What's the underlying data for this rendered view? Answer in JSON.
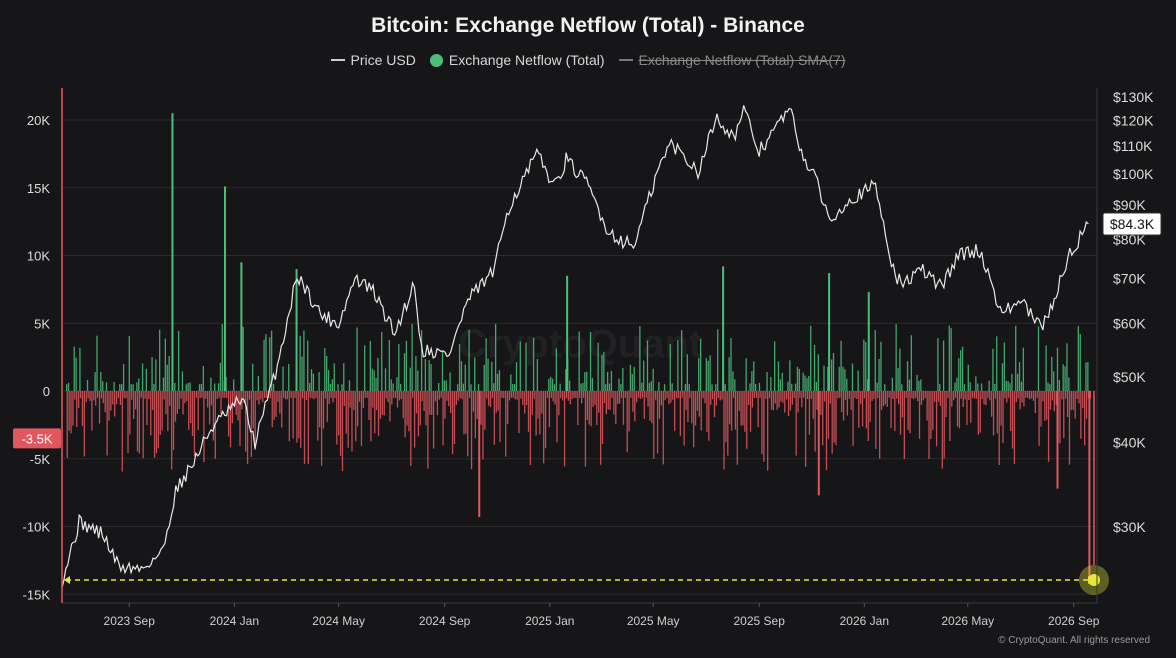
{
  "chart_data": {
    "type": "bar",
    "title": "Bitcoin: Exchange Netflow (Total) - Binance",
    "legend": [
      {
        "name": "Price USD",
        "kind": "line",
        "active": true
      },
      {
        "name": "Exchange Netflow (Total)",
        "kind": "dot",
        "active": true
      },
      {
        "name": "Exchange Netflow (Total) SMA(7)",
        "kind": "line",
        "active": false
      }
    ],
    "left_axis": {
      "ticks": [
        20000,
        15000,
        10000,
        5000,
        0,
        -5000,
        -10000,
        -15000
      ],
      "tick_labels": [
        "20K",
        "15K",
        "10K",
        "5K",
        "0",
        "-5K",
        "-10K",
        "-15K"
      ],
      "ylim": [
        -15000,
        20000
      ]
    },
    "right_axis": {
      "scale": "log",
      "ticks": [
        130000,
        120000,
        110000,
        100000,
        90000,
        80000,
        70000,
        60000,
        50000,
        40000,
        30000
      ],
      "tick_labels": [
        "$130K",
        "$120K",
        "$110K",
        "$100K",
        "$90K",
        "$80K",
        "$70K",
        "$60K",
        "$50K",
        "$40K",
        "$30K"
      ]
    },
    "x_axis": {
      "tick_labels": [
        "2023 Sep",
        "2024 Jan",
        "2024 May",
        "2024 Sep",
        "2025 Jan",
        "2025 May",
        "2025 Sep",
        "2026 Jan",
        "2026 May",
        "2026 Sep"
      ],
      "tick_dates": [
        "2023-09-01",
        "2024-01-01",
        "2024-05-01",
        "2024-09-01",
        "2025-01-01",
        "2025-05-01",
        "2025-09-01",
        "2026-01-01",
        "2026-05-01",
        "2026-09-01"
      ],
      "xlim": [
        "2023-06-15",
        "2026-09-28"
      ]
    },
    "current_netflow_label": "-3.5K",
    "current_netflow_value": -3500,
    "current_price_label": "$84.3K",
    "current_price_value": 84300,
    "price_series": {
      "name": "Price USD",
      "x": [
        "2023-06-15",
        "2023-07-05",
        "2023-08-01",
        "2023-08-20",
        "2023-09-15",
        "2023-10-10",
        "2023-10-25",
        "2023-11-15",
        "2023-12-05",
        "2024-01-10",
        "2024-01-25",
        "2024-02-20",
        "2024-03-14",
        "2024-04-10",
        "2024-05-01",
        "2024-05-20",
        "2024-06-10",
        "2024-07-05",
        "2024-07-28",
        "2024-08-05",
        "2024-09-06",
        "2024-09-28",
        "2024-10-29",
        "2024-11-12",
        "2024-12-05",
        "2024-12-17",
        "2025-01-07",
        "2025-01-20",
        "2025-02-15",
        "2025-03-10",
        "2025-04-08",
        "2025-05-10",
        "2025-05-22",
        "2025-06-22",
        "2025-07-14",
        "2025-08-02",
        "2025-08-14",
        "2025-09-01",
        "2025-10-06",
        "2025-10-20",
        "2025-11-10",
        "2025-11-22",
        "2025-12-10",
        "2026-01-14",
        "2026-02-06",
        "2026-02-15",
        "2026-03-10",
        "2026-04-01",
        "2026-04-20",
        "2026-05-15",
        "2026-06-10",
        "2026-07-01",
        "2026-07-25",
        "2026-08-05",
        "2026-08-25",
        "2026-09-18"
      ],
      "values": [
        25000,
        30500,
        29300,
        26200,
        26000,
        27600,
        34000,
        37500,
        42000,
        46500,
        40000,
        52000,
        71000,
        62000,
        60000,
        70000,
        67000,
        58000,
        69000,
        55000,
        54000,
        65000,
        72000,
        88000,
        100000,
        107000,
        96000,
        105000,
        96000,
        82000,
        78000,
        104000,
        111000,
        101000,
        122000,
        113000,
        124000,
        108000,
        125000,
        108000,
        95000,
        85000,
        91000,
        96000,
        70000,
        69000,
        72000,
        68000,
        76000,
        77000,
        62000,
        65000,
        59000,
        63000,
        75000,
        84300
      ]
    },
    "netflow_series": {
      "name": "Exchange Netflow (Total)",
      "spikes": [
        {
          "x": "2023-10-20",
          "value": 20500
        },
        {
          "x": "2023-12-20",
          "value": 15100
        },
        {
          "x": "2024-01-08",
          "value": 9500
        },
        {
          "x": "2024-03-12",
          "value": 9000
        },
        {
          "x": "2025-01-20",
          "value": 8500
        },
        {
          "x": "2025-07-20",
          "value": 9200
        },
        {
          "x": "2025-11-20",
          "value": 8700
        },
        {
          "x": "2026-01-05",
          "value": 7300
        },
        {
          "x": "2026-09-18",
          "value": -14000
        },
        {
          "x": "2024-10-10",
          "value": -9300
        },
        {
          "x": "2025-11-08",
          "value": -7700
        },
        {
          "x": "2026-08-12",
          "value": -7200
        }
      ],
      "typical_positive_range": [
        500,
        5000
      ],
      "typical_negative_range": [
        -500,
        -6000
      ]
    }
  },
  "footer": {
    "copyright": "© CryptoQuant. All rights reserved"
  },
  "colors": {
    "positive": "#4bbf7a",
    "negative": "#e0585e",
    "price_line": "#e8e8e8",
    "grid": "#2a2a2d",
    "marker": "#e8e83a"
  }
}
